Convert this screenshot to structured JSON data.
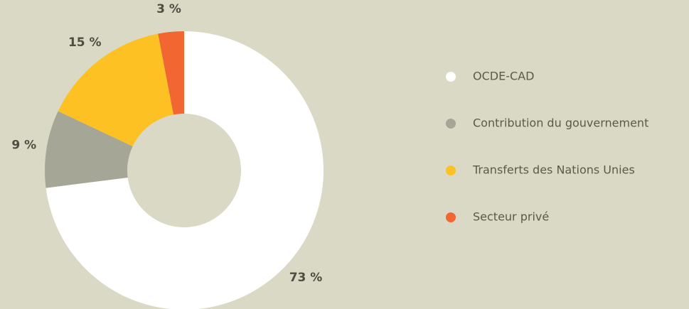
{
  "chart_data": {
    "type": "donut",
    "categories": [
      "OCDE-CAD",
      "Contribution du gouvernement",
      "Transferts des Nations Unies",
      "Secteur privé"
    ],
    "values": [
      73,
      9,
      15,
      3
    ],
    "value_labels": [
      "73 %",
      "9 %",
      "15 %",
      "3 %"
    ],
    "colors": [
      "#ffffff",
      "#a6a697",
      "#fdc124",
      "#f26631"
    ],
    "legend": "right"
  }
}
